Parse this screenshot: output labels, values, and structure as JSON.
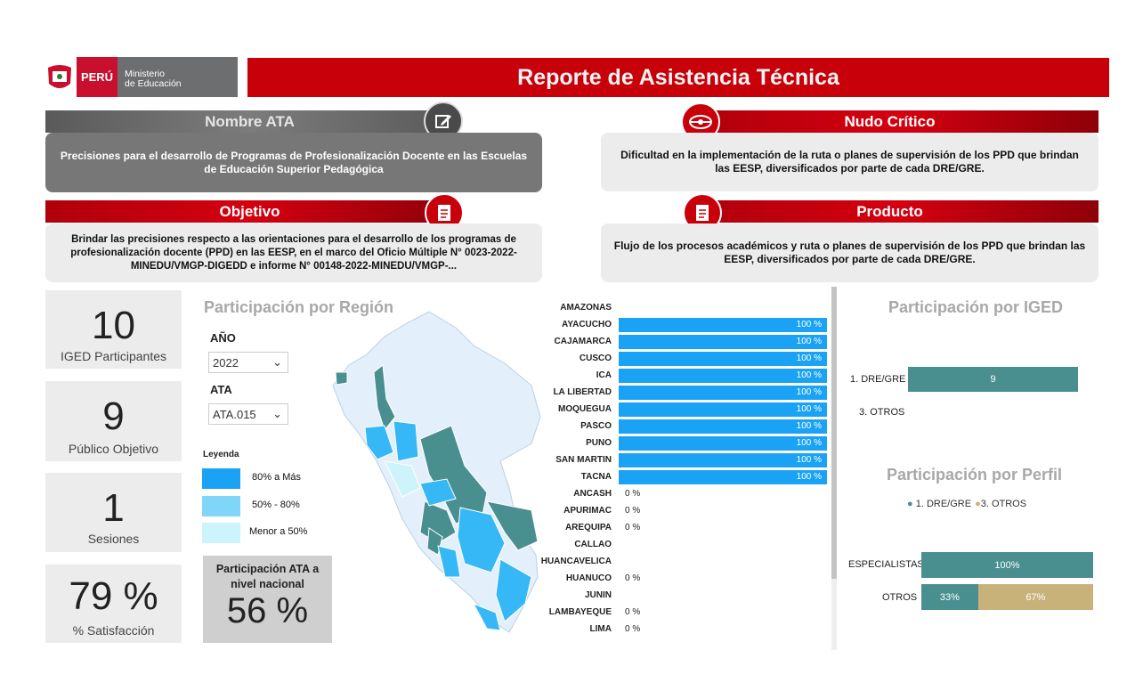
{
  "header": {
    "country": "PERÚ",
    "ministry_line1": "Ministerio",
    "ministry_line2": "de Educación",
    "title": "Reporte de Asistencia Técnica"
  },
  "cards": {
    "nombre_ata": {
      "title": "Nombre ATA",
      "text": "Precisiones para el desarrollo de Programas de Profesionalización Docente en las Escuelas de Educación Superior Pedagógica"
    },
    "nudo_critico": {
      "title": "Nudo Crítico",
      "text": "Dificultad en la implementación de la ruta o planes de supervisión de los PPD que brindan las EESP, diversificados por parte de cada DRE/GRE."
    },
    "objetivo": {
      "title": "Objetivo",
      "text": "Brindar las precisiones respecto a las orientaciones para el desarrollo de los programas de profesionalización docente (PPD) en las EESP, en el marco del Oficio Múltiple N° 0023-2022-MINEDU/VMGP-DIGEDD e informe N° 00148-2022-MINEDU/VMGP-..."
    },
    "producto": {
      "title": "Producto",
      "text": "Flujo de los procesos académicos y ruta o planes de supervisión de los PPD que brindan las EESP, diversificados por parte de cada DRE/GRE."
    }
  },
  "kpis": [
    {
      "value": "10",
      "label": "IGED Participantes"
    },
    {
      "value": "9",
      "label": "Público Objetivo"
    },
    {
      "value": "1",
      "label": "Sesiones"
    },
    {
      "value": "79 %",
      "label": "% Satisfacción"
    }
  ],
  "region_section": {
    "title": "Participación por Región",
    "year_label": "AÑO",
    "year_value": "2022",
    "ata_label": "ATA",
    "ata_value": "ATA.015",
    "legend_title": "Leyenda",
    "legend": [
      {
        "label": "80% a Más",
        "color": "#1aa3f5"
      },
      {
        "label": "50% - 80%",
        "color": "#7fd6f8"
      },
      {
        "label": "Menor a 50%",
        "color": "#cdf3fb"
      }
    ],
    "national_label": "Participación ATA a nivel nacional",
    "national_value": "56 %"
  },
  "regions": [
    {
      "name": "AMAZONAS",
      "value": null,
      "label": ""
    },
    {
      "name": "AYACUCHO",
      "value": 100,
      "label": "100 %"
    },
    {
      "name": "CAJAMARCA",
      "value": 100,
      "label": "100 %"
    },
    {
      "name": "CUSCO",
      "value": 100,
      "label": "100 %"
    },
    {
      "name": "ICA",
      "value": 100,
      "label": "100 %"
    },
    {
      "name": "LA LIBERTAD",
      "value": 100,
      "label": "100 %"
    },
    {
      "name": "MOQUEGUA",
      "value": 100,
      "label": "100 %"
    },
    {
      "name": "PASCO",
      "value": 100,
      "label": "100 %"
    },
    {
      "name": "PUNO",
      "value": 100,
      "label": "100 %"
    },
    {
      "name": "SAN MARTIN",
      "value": 100,
      "label": "100 %"
    },
    {
      "name": "TACNA",
      "value": 100,
      "label": "100 %"
    },
    {
      "name": "ANCASH",
      "value": 0,
      "label": "0 %"
    },
    {
      "name": "APURIMAC",
      "value": 0,
      "label": "0 %"
    },
    {
      "name": "AREQUIPA",
      "value": 0,
      "label": "0 %"
    },
    {
      "name": "CALLAO",
      "value": null,
      "label": ""
    },
    {
      "name": "HUANCAVELICA",
      "value": null,
      "label": ""
    },
    {
      "name": "HUANUCO",
      "value": 0,
      "label": "0 %"
    },
    {
      "name": "JUNIN",
      "value": null,
      "label": ""
    },
    {
      "name": "LAMBAYEQUE",
      "value": 0,
      "label": "0 %"
    },
    {
      "name": "LIMA",
      "value": 0,
      "label": "0 %"
    }
  ],
  "iged_section": {
    "title": "Participación por IGED",
    "rows": [
      {
        "label": "1. DRE/GRE",
        "value": 9,
        "text": "9"
      },
      {
        "label": "3. OTROS",
        "value": 0,
        "text": ""
      }
    ],
    "max": 9
  },
  "perfil_section": {
    "title": "Participación por Perfil",
    "legend": [
      {
        "label": "1. DRE/GRE",
        "color": "#4a9393"
      },
      {
        "label": "3. OTROS",
        "color": "#c8b27a"
      }
    ],
    "rows": [
      {
        "label": "ESPECIALISTAS",
        "dre": 100,
        "otros": 0,
        "dre_text": "100%",
        "otros_text": ""
      },
      {
        "label": "OTROS",
        "dre": 33,
        "otros": 67,
        "dre_text": "33%",
        "otros_text": "67%"
      }
    ]
  },
  "colors": {
    "red": "#c8000a",
    "teal": "#4a8f8f",
    "blue_high": "#1aa3f5",
    "tan": "#c8b27a"
  }
}
